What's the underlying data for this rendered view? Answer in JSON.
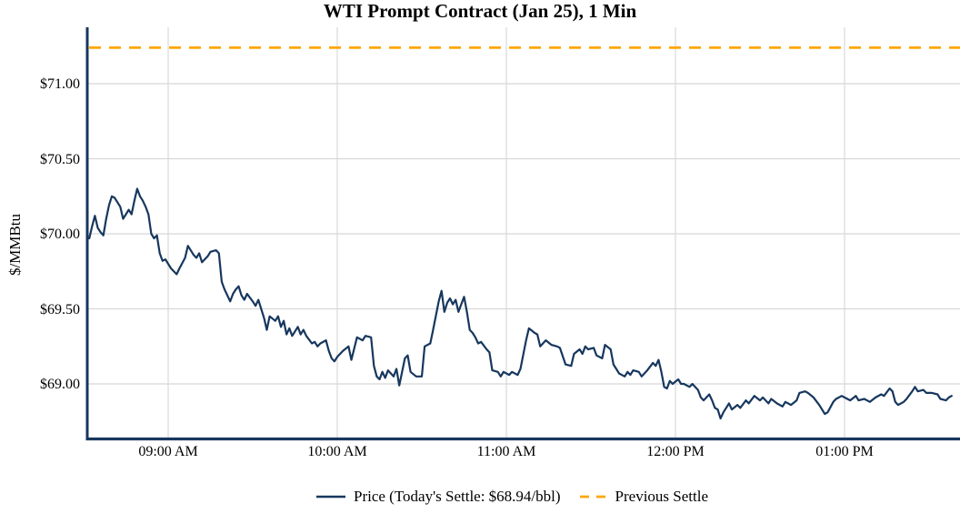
{
  "chart_data": {
    "type": "line",
    "title": "WTI Prompt Contract (Jan 25), 1 Min",
    "ylabel": "$/MMBtu",
    "xlabel": "",
    "grid": true,
    "legend_position": "bottom-center",
    "ylim": [
      68.62,
      71.38
    ],
    "xlim": [
      "08:31",
      "13:41"
    ],
    "todays_settle": 68.94,
    "y_ticks": [
      {
        "value": 71.0,
        "label": "$71.00"
      },
      {
        "value": 70.5,
        "label": "$70.50"
      },
      {
        "value": 70.0,
        "label": "$70.00"
      },
      {
        "value": 69.5,
        "label": "$69.50"
      },
      {
        "value": 69.0,
        "label": "$69.00"
      }
    ],
    "x_ticks": [
      {
        "time": "09:00",
        "label": "09:00 AM"
      },
      {
        "time": "10:00",
        "label": "10:00 AM"
      },
      {
        "time": "11:00",
        "label": "11:00 AM"
      },
      {
        "time": "12:00",
        "label": "12:00 PM"
      },
      {
        "time": "13:00",
        "label": "01:00 PM"
      }
    ],
    "series": [
      {
        "name": "Price (Today's Settle: $68.94/bbl)",
        "kind": "line",
        "color": "#17375E",
        "style": "solid",
        "points": [
          [
            "08:32",
            69.97
          ],
          [
            "08:33",
            70.05
          ],
          [
            "08:34",
            70.12
          ],
          [
            "08:35",
            70.04
          ],
          [
            "08:36",
            70.01
          ],
          [
            "08:37",
            69.99
          ],
          [
            "08:38",
            70.1
          ],
          [
            "08:39",
            70.19
          ],
          [
            "08:40",
            70.25
          ],
          [
            "08:41",
            70.24
          ],
          [
            "08:43",
            70.18
          ],
          [
            "08:44",
            70.1
          ],
          [
            "08:45",
            70.13
          ],
          [
            "08:46",
            70.16
          ],
          [
            "08:47",
            70.13
          ],
          [
            "08:48",
            70.22
          ],
          [
            "08:49",
            70.3
          ],
          [
            "08:50",
            70.25
          ],
          [
            "08:51",
            70.22
          ],
          [
            "08:52",
            70.18
          ],
          [
            "08:53",
            70.13
          ],
          [
            "08:54",
            70.0
          ],
          [
            "08:55",
            69.97
          ],
          [
            "08:56",
            69.99
          ],
          [
            "08:57",
            69.87
          ],
          [
            "08:58",
            69.82
          ],
          [
            "08:59",
            69.83
          ],
          [
            "09:01",
            69.77
          ],
          [
            "09:02",
            69.75
          ],
          [
            "09:03",
            69.73
          ],
          [
            "09:04",
            69.77
          ],
          [
            "09:06",
            69.84
          ],
          [
            "09:07",
            69.92
          ],
          [
            "09:09",
            69.86
          ],
          [
            "09:10",
            69.84
          ],
          [
            "09:11",
            69.87
          ],
          [
            "09:12",
            69.81
          ],
          [
            "09:14",
            69.85
          ],
          [
            "09:15",
            69.88
          ],
          [
            "09:17",
            69.89
          ],
          [
            "09:18",
            69.87
          ],
          [
            "09:19",
            69.68
          ],
          [
            "09:20",
            69.63
          ],
          [
            "09:22",
            69.55
          ],
          [
            "09:23",
            69.6
          ],
          [
            "09:24",
            69.63
          ],
          [
            "09:25",
            69.65
          ],
          [
            "09:26",
            69.59
          ],
          [
            "09:27",
            69.56
          ],
          [
            "09:28",
            69.6
          ],
          [
            "09:30",
            69.55
          ],
          [
            "09:31",
            69.52
          ],
          [
            "09:32",
            69.56
          ],
          [
            "09:33",
            69.5
          ],
          [
            "09:34",
            69.44
          ],
          [
            "09:35",
            69.36
          ],
          [
            "09:36",
            69.45
          ],
          [
            "09:38",
            69.42
          ],
          [
            "09:39",
            69.45
          ],
          [
            "09:40",
            69.38
          ],
          [
            "09:41",
            69.42
          ],
          [
            "09:42",
            69.33
          ],
          [
            "09:43",
            69.37
          ],
          [
            "09:44",
            69.32
          ],
          [
            "09:45",
            69.35
          ],
          [
            "09:46",
            69.38
          ],
          [
            "09:47",
            69.33
          ],
          [
            "09:48",
            69.36
          ],
          [
            "09:49",
            69.32
          ],
          [
            "09:51",
            69.27
          ],
          [
            "09:52",
            69.28
          ],
          [
            "09:53",
            69.25
          ],
          [
            "09:54",
            69.27
          ],
          [
            "09:56",
            69.29
          ],
          [
            "09:57",
            69.22
          ],
          [
            "09:58",
            69.17
          ],
          [
            "09:59",
            69.15
          ],
          [
            "10:00",
            69.18
          ],
          [
            "10:02",
            69.22
          ],
          [
            "10:04",
            69.25
          ],
          [
            "10:05",
            69.16
          ],
          [
            "10:07",
            69.31
          ],
          [
            "10:09",
            69.29
          ],
          [
            "10:10",
            69.32
          ],
          [
            "10:12",
            69.31
          ],
          [
            "10:13",
            69.12
          ],
          [
            "10:14",
            69.05
          ],
          [
            "10:15",
            69.03
          ],
          [
            "10:16",
            69.08
          ],
          [
            "10:17",
            69.04
          ],
          [
            "10:18",
            69.09
          ],
          [
            "10:20",
            69.05
          ],
          [
            "10:21",
            69.1
          ],
          [
            "10:22",
            68.99
          ],
          [
            "10:24",
            69.17
          ],
          [
            "10:25",
            69.19
          ],
          [
            "10:26",
            69.08
          ],
          [
            "10:28",
            69.05
          ],
          [
            "10:30",
            69.05
          ],
          [
            "10:31",
            69.25
          ],
          [
            "10:33",
            69.27
          ],
          [
            "10:34",
            69.36
          ],
          [
            "10:36",
            69.55
          ],
          [
            "10:37",
            69.62
          ],
          [
            "10:38",
            69.48
          ],
          [
            "10:39",
            69.54
          ],
          [
            "10:40",
            69.57
          ],
          [
            "10:41",
            69.53
          ],
          [
            "10:42",
            69.56
          ],
          [
            "10:43",
            69.48
          ],
          [
            "10:44",
            69.53
          ],
          [
            "10:45",
            69.58
          ],
          [
            "10:46",
            69.48
          ],
          [
            "10:47",
            69.36
          ],
          [
            "10:48",
            69.34
          ],
          [
            "10:49",
            69.31
          ],
          [
            "10:50",
            69.27
          ],
          [
            "10:51",
            69.28
          ],
          [
            "10:53",
            69.23
          ],
          [
            "10:54",
            69.21
          ],
          [
            "10:55",
            69.09
          ],
          [
            "10:57",
            69.08
          ],
          [
            "10:58",
            69.05
          ],
          [
            "10:59",
            69.08
          ],
          [
            "11:01",
            69.06
          ],
          [
            "11:02",
            69.08
          ],
          [
            "11:04",
            69.06
          ],
          [
            "11:05",
            69.1
          ],
          [
            "11:07",
            69.29
          ],
          [
            "11:08",
            69.37
          ],
          [
            "11:10",
            69.34
          ],
          [
            "11:11",
            69.33
          ],
          [
            "11:12",
            69.25
          ],
          [
            "11:14",
            69.29
          ],
          [
            "11:16",
            69.26
          ],
          [
            "11:18",
            69.25
          ],
          [
            "11:19",
            69.24
          ],
          [
            "11:21",
            69.13
          ],
          [
            "11:23",
            69.12
          ],
          [
            "11:24",
            69.2
          ],
          [
            "11:26",
            69.23
          ],
          [
            "11:27",
            69.2
          ],
          [
            "11:28",
            69.25
          ],
          [
            "11:29",
            69.23
          ],
          [
            "11:31",
            69.24
          ],
          [
            "11:32",
            69.19
          ],
          [
            "11:34",
            69.17
          ],
          [
            "11:35",
            69.26
          ],
          [
            "11:37",
            69.23
          ],
          [
            "11:38",
            69.13
          ],
          [
            "11:39",
            69.1
          ],
          [
            "11:40",
            69.07
          ],
          [
            "11:42",
            69.05
          ],
          [
            "11:43",
            69.08
          ],
          [
            "11:44",
            69.06
          ],
          [
            "11:45",
            69.09
          ],
          [
            "11:47",
            69.08
          ],
          [
            "11:48",
            69.05
          ],
          [
            "11:50",
            69.09
          ],
          [
            "11:52",
            69.14
          ],
          [
            "11:53",
            69.12
          ],
          [
            "11:54",
            69.16
          ],
          [
            "11:55",
            69.08
          ],
          [
            "11:56",
            68.98
          ],
          [
            "11:57",
            68.97
          ],
          [
            "11:58",
            69.02
          ],
          [
            "11:59",
            69.0
          ],
          [
            "12:01",
            69.03
          ],
          [
            "12:02",
            69.0
          ],
          [
            "12:03",
            69.0
          ],
          [
            "12:05",
            68.98
          ],
          [
            "12:06",
            69.0
          ],
          [
            "12:08",
            68.96
          ],
          [
            "12:09",
            68.91
          ],
          [
            "12:10",
            68.89
          ],
          [
            "12:12",
            68.93
          ],
          [
            "12:13",
            68.89
          ],
          [
            "12:14",
            68.84
          ],
          [
            "12:15",
            68.83
          ],
          [
            "12:16",
            68.77
          ],
          [
            "12:17",
            68.81
          ],
          [
            "12:19",
            68.87
          ],
          [
            "12:20",
            68.83
          ],
          [
            "12:22",
            68.86
          ],
          [
            "12:23",
            68.84
          ],
          [
            "12:25",
            68.89
          ],
          [
            "12:26",
            68.87
          ],
          [
            "12:28",
            68.92
          ],
          [
            "12:30",
            68.89
          ],
          [
            "12:31",
            68.91
          ],
          [
            "12:33",
            68.87
          ],
          [
            "12:34",
            68.9
          ],
          [
            "12:36",
            68.87
          ],
          [
            "12:38",
            68.85
          ],
          [
            "12:39",
            68.88
          ],
          [
            "12:41",
            68.86
          ],
          [
            "12:43",
            68.89
          ],
          [
            "12:44",
            68.94
          ],
          [
            "12:46",
            68.95
          ],
          [
            "12:47",
            68.94
          ],
          [
            "12:49",
            68.91
          ],
          [
            "12:51",
            68.86
          ],
          [
            "12:52",
            68.83
          ],
          [
            "12:53",
            68.8
          ],
          [
            "12:54",
            68.81
          ],
          [
            "12:56",
            68.88
          ],
          [
            "12:57",
            68.9
          ],
          [
            "12:59",
            68.92
          ],
          [
            "13:00",
            68.91
          ],
          [
            "13:02",
            68.89
          ],
          [
            "13:04",
            68.92
          ],
          [
            "13:05",
            68.89
          ],
          [
            "13:07",
            68.9
          ],
          [
            "13:09",
            68.88
          ],
          [
            "13:11",
            68.91
          ],
          [
            "13:13",
            68.93
          ],
          [
            "13:14",
            68.92
          ],
          [
            "13:16",
            68.97
          ],
          [
            "13:17",
            68.95
          ],
          [
            "13:18",
            68.88
          ],
          [
            "13:19",
            68.86
          ],
          [
            "13:21",
            68.88
          ],
          [
            "13:22",
            68.9
          ],
          [
            "13:24",
            68.95
          ],
          [
            "13:25",
            68.98
          ],
          [
            "13:26",
            68.95
          ],
          [
            "13:28",
            68.96
          ],
          [
            "13:29",
            68.94
          ],
          [
            "13:31",
            68.94
          ],
          [
            "13:33",
            68.93
          ],
          [
            "13:34",
            68.9
          ],
          [
            "13:36",
            68.89
          ],
          [
            "13:37",
            68.91
          ],
          [
            "13:38",
            68.92
          ]
        ]
      },
      {
        "name": "Previous Settle",
        "kind": "hline",
        "color": "#FFA500",
        "style": "dashed",
        "value": 71.24
      }
    ]
  },
  "colors": {
    "price": "#17375E",
    "previous_settle": "#FFA500",
    "grid": "#D8D8D8",
    "axis": "#17375E",
    "text": "#000000",
    "background": "#FFFFFF"
  }
}
